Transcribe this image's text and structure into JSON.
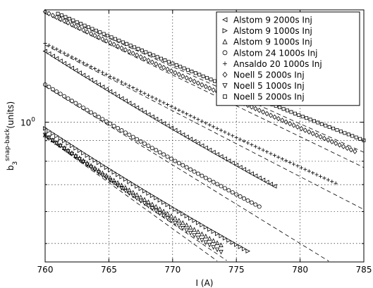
{
  "chart_data": {
    "type": "scatter",
    "x_axis": {
      "label": "I (A)",
      "lim": [
        760,
        785
      ],
      "ticks": [
        760,
        765,
        770,
        775,
        780,
        785
      ],
      "tick_labels": [
        "760",
        "765",
        "770",
        "775",
        "780",
        "785"
      ]
    },
    "y_axis": {
      "label_main": "b",
      "label_sub": "3",
      "label_sup": "snap-back",
      "label_unit": "(units)",
      "scale": "log",
      "lim": [
        0.45,
        1.9
      ],
      "major_tick": 1.0,
      "major_tick_label": "10",
      "major_tick_exp": "0",
      "minor_gridlines": [
        0.5,
        0.6,
        0.7,
        0.8,
        0.9
      ]
    },
    "grid": true,
    "legend_position": "top-right",
    "series": [
      {
        "name": "Alstom 9 2000s Inj",
        "marker": "triangle-left",
        "x_start": 760,
        "y0": 1.5,
        "decay": 0.0461,
        "x_end": 778.0,
        "fit": false
      },
      {
        "name": "Alstom 9 1000s Inj",
        "marker": "triangle-right",
        "x_start": 760,
        "y0": 0.965,
        "decay": 0.0477,
        "x_end": 776.0,
        "fit": false
      },
      {
        "name": "Alstom 9 1000s Inj",
        "marker": "triangle-up",
        "x_start": 760,
        "y0": 0.93,
        "decay": 0.0497,
        "x_end": 774.0,
        "fit": true
      },
      {
        "name": "Alstom 24 1000s Inj",
        "marker": "circle",
        "x_start": 760,
        "y0": 1.24,
        "decay": 0.0449,
        "x_end": 777.0,
        "fit": true
      },
      {
        "name": "Ansaldo 20 1000s Inj",
        "marker": "plus",
        "x_start": 760,
        "y0": 1.57,
        "decay": 0.0376,
        "x_end": 783.0,
        "fit": true
      },
      {
        "name": "Noell 5 2000s Inj",
        "marker": "diamond",
        "x_start": 760,
        "y0": 1.88,
        "decay": 0.0352,
        "x_end": 784.5,
        "fit": true
      },
      {
        "name": "Noell 5 1000s Inj",
        "marker": "triangle-down",
        "x_start": 760,
        "y0": 0.93,
        "decay": 0.0526,
        "x_end": 774.0,
        "fit": true
      },
      {
        "name": "Noell 5 2000s Inj",
        "marker": "square",
        "x_start": 761,
        "y0": 1.86,
        "decay": 0.0326,
        "x_end": 785.0,
        "fit": true
      }
    ]
  }
}
